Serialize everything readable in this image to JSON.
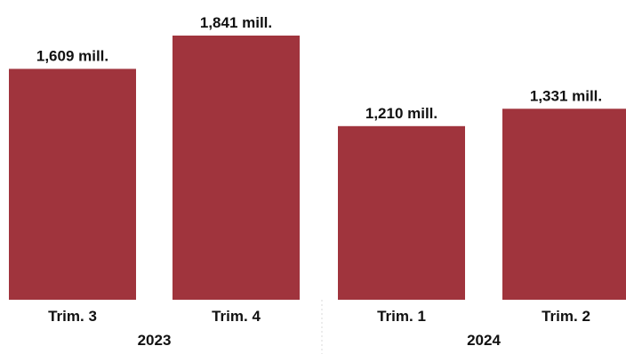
{
  "chart_data": {
    "type": "bar",
    "categories": [
      "Trim. 3",
      "Trim. 4",
      "Trim. 1",
      "Trim. 2"
    ],
    "groups": [
      {
        "label": "2023",
        "categories": [
          "Trim. 3",
          "Trim. 4"
        ]
      },
      {
        "label": "2024",
        "categories": [
          "Trim. 1",
          "Trim. 2"
        ]
      }
    ],
    "values": [
      1609,
      1841,
      1210,
      1331
    ],
    "data_labels": [
      "1,609 mill.",
      "1,841 mill.",
      "1,210 mill.",
      "1,331 mill."
    ],
    "title": "",
    "xlabel": "",
    "ylabel": "",
    "ylim": [
      0,
      1841
    ],
    "grid": false,
    "legend": "none",
    "colors": {
      "bar": "#a0343d",
      "separator": "#d9d9d9",
      "text": "#111111"
    }
  }
}
